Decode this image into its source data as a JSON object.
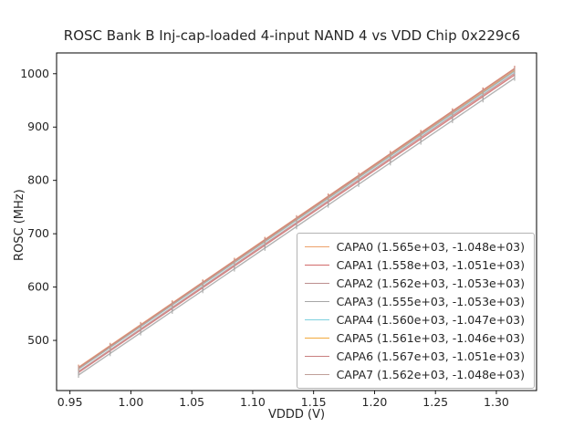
{
  "chart_data": {
    "type": "line",
    "title": "ROSC Bank B Inj-cap-loaded 4-input NAND 4 vs VDD Chip 0x229c6",
    "xlabel": "VDDD (V)",
    "ylabel": "ROSC (MHz)",
    "legend_position": "lower right",
    "grid": false,
    "xlim": [
      0.939,
      1.333
    ],
    "ylim": [
      406,
      1039
    ],
    "x_ticks": [
      0.95,
      1.0,
      1.05,
      1.1,
      1.15,
      1.2,
      1.25,
      1.3
    ],
    "x_tick_labels": [
      "0.95",
      "1.00",
      "1.05",
      "1.10",
      "1.15",
      "1.20",
      "1.25",
      "1.30"
    ],
    "y_ticks": [
      500,
      600,
      700,
      800,
      900,
      1000
    ],
    "x": [
      0.957,
      0.983,
      1.008,
      1.034,
      1.059,
      1.085,
      1.11,
      1.136,
      1.162,
      1.187,
      1.213,
      1.238,
      1.264,
      1.289,
      1.315
    ],
    "series": [
      {
        "name": "CAPA0",
        "label": "CAPA0 (1.565e+03, -1.048e+03)",
        "fit_slope": 1565,
        "fit_intercept": -1048,
        "color": "#eda16a",
        "values": [
          449.7,
          490.4,
          529.5,
          570.2,
          609.3,
          650.0,
          689.2,
          729.8,
          770.5,
          809.7,
          850.3,
          889.5,
          930.2,
          969.3,
          1010.0
        ]
      },
      {
        "name": "CAPA1",
        "label": "CAPA1 (1.558e+03, -1.051e+03)",
        "fit_slope": 1558,
        "fit_intercept": -1051,
        "color": "#d26a6a",
        "values": [
          440.0,
          480.5,
          519.5,
          560.0,
          598.9,
          639.4,
          678.4,
          718.9,
          759.4,
          798.3,
          838.9,
          877.8,
          918.3,
          957.3,
          997.8
        ]
      },
      {
        "name": "CAPA2",
        "label": "CAPA2 (1.562e+03, -1.053e+03)",
        "fit_slope": 1562,
        "fit_intercept": -1053,
        "color": "#bc8f8f",
        "values": [
          441.8,
          482.4,
          521.5,
          562.1,
          601.2,
          641.8,
          680.8,
          721.4,
          762.0,
          801.1,
          841.7,
          880.8,
          921.4,
          960.4,
          1001.0
        ]
      },
      {
        "name": "CAPA3",
        "label": "CAPA3 (1.555e+03, -1.053e+03)",
        "fit_slope": 1555,
        "fit_intercept": -1053,
        "color": "#a6a6a6",
        "values": [
          435.1,
          475.6,
          514.4,
          554.9,
          593.7,
          634.2,
          673.1,
          713.5,
          753.9,
          792.8,
          833.2,
          872.1,
          912.5,
          951.4,
          991.8
        ]
      },
      {
        "name": "CAPA4",
        "label": "CAPA4 (1.560e+03, -1.047e+03)",
        "fit_slope": 1560,
        "fit_intercept": -1047,
        "color": "#7ed0de",
        "values": [
          445.9,
          486.5,
          525.5,
          566.0,
          605.0,
          645.6,
          684.6,
          725.2,
          765.7,
          804.7,
          845.3,
          884.3,
          924.8,
          963.8,
          1004.4
        ]
      },
      {
        "name": "CAPA5",
        "label": "CAPA5 (1.561e+03, -1.046e+03)",
        "fit_slope": 1561,
        "fit_intercept": -1046,
        "color": "#f2a93b",
        "values": [
          447.9,
          488.5,
          527.5,
          568.1,
          607.1,
          647.7,
          686.7,
          727.3,
          767.9,
          806.9,
          847.5,
          886.5,
          927.1,
          966.1,
          1006.7
        ]
      },
      {
        "name": "CAPA6",
        "label": "CAPA6 (1.567e+03, -1.051e+03)",
        "fit_slope": 1567,
        "fit_intercept": -1051,
        "color": "#c97f7f",
        "values": [
          448.6,
          489.4,
          528.5,
          569.3,
          608.5,
          649.2,
          688.4,
          729.1,
          769.9,
          809.0,
          849.8,
          888.9,
          929.7,
          968.9,
          1009.6
        ]
      },
      {
        "name": "CAPA7",
        "label": "CAPA7 (1.562e+03, -1.048e+03)",
        "fit_slope": 1562,
        "fit_intercept": -1048,
        "color": "#c0a099",
        "values": [
          446.8,
          487.4,
          526.5,
          567.1,
          606.2,
          646.8,
          685.8,
          726.4,
          767.0,
          806.1,
          846.7,
          885.8,
          926.4,
          965.4,
          1006.0
        ]
      }
    ]
  }
}
